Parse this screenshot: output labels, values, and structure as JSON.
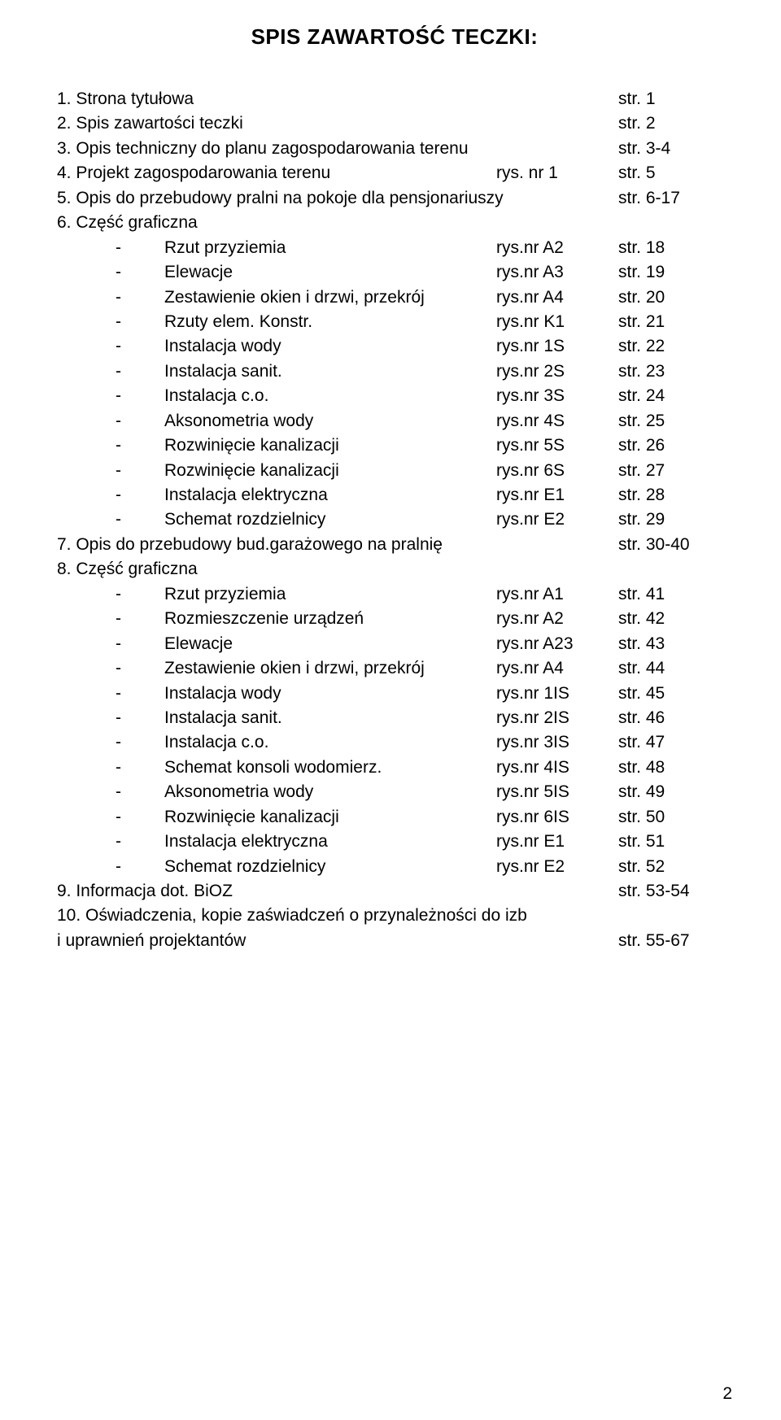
{
  "title": "SPIS ZAWARTOŚĆ TECZKI:",
  "page_number": "2",
  "text_color": "#000000",
  "background_color": "#ffffff",
  "title_fontsize": 26,
  "body_fontsize": 21,
  "col_left_width": 540,
  "col_mid_width": 150,
  "sub_col_left_width": 468,
  "top_items": [
    {
      "num": "1.",
      "label": "Strona tytułowa",
      "mid": "",
      "right": "str. 1"
    },
    {
      "num": "2.",
      "label": "Spis zawartości teczki",
      "mid": "",
      "right": "str. 2"
    },
    {
      "num": "3.",
      "label": "Opis techniczny do planu zagospodarowania terenu",
      "mid": "",
      "right": "str. 3-4"
    },
    {
      "num": "4.",
      "label": "Projekt zagospodarowania terenu",
      "mid": "rys. nr 1",
      "right": "str. 5"
    },
    {
      "num": "5.",
      "label": "Opis do przebudowy pralni na pokoje dla pensjonariuszy",
      "mid": "",
      "right": "str. 6-17"
    },
    {
      "num": "6.",
      "label": "Część graficzna",
      "mid": "",
      "right": ""
    }
  ],
  "section6": [
    {
      "label": "Rzut przyziemia",
      "mid": "rys.nr A2",
      "right": "str. 18"
    },
    {
      "label": "Elewacje",
      "mid": "rys.nr A3",
      "right": "str. 19"
    },
    {
      "label": "Zestawienie okien i drzwi, przekrój",
      "mid": "rys.nr A4",
      "right": "str. 20"
    },
    {
      "label": "Rzuty elem. Konstr.",
      "mid": "rys.nr K1",
      "right": "str. 21"
    },
    {
      "label": "Instalacja wody",
      "mid": "rys.nr 1S",
      "right": "str. 22"
    },
    {
      "label": "Instalacja sanit.",
      "mid": "rys.nr 2S",
      "right": "str. 23"
    },
    {
      "label": "Instalacja c.o.",
      "mid": "rys.nr 3S",
      "right": "str. 24"
    },
    {
      "label": "Aksonometria wody",
      "mid": "rys.nr 4S",
      "right": "str. 25"
    },
    {
      "label": "Rozwinięcie kanalizacji",
      "mid": "rys.nr 5S",
      "right": "str. 26"
    },
    {
      "label": "Rozwinięcie kanalizacji",
      "mid": "rys.nr 6S",
      "right": "str. 27"
    },
    {
      "label": "Instalacja elektryczna",
      "mid": "rys.nr E1",
      "right": "str. 28"
    },
    {
      "label": "Schemat rozdzielnicy",
      "mid": "rys.nr E2",
      "right": "str. 29"
    }
  ],
  "mid_items": [
    {
      "num": "7.",
      "label": "Opis do przebudowy bud.garażowego na pralnię",
      "mid": "",
      "right": "str. 30-40"
    },
    {
      "num": "8.",
      "label": "Część graficzna",
      "mid": "",
      "right": ""
    }
  ],
  "section8": [
    {
      "label": "Rzut przyziemia",
      "mid": "rys.nr A1",
      "right": "str. 41"
    },
    {
      "label": "Rozmieszczenie urządzeń",
      "mid": "rys.nr A2",
      "right": "str. 42"
    },
    {
      "label": "Elewacje",
      "mid": "rys.nr A23",
      "right": "str. 43"
    },
    {
      "label": "Zestawienie okien i drzwi, przekrój",
      "mid": "rys.nr A4",
      "right": "str. 44"
    },
    {
      "label": "Instalacja wody",
      "mid": "rys.nr 1IS",
      "right": "str. 45"
    },
    {
      "label": "Instalacja sanit.",
      "mid": "rys.nr 2IS",
      "right": "str. 46"
    },
    {
      "label": "Instalacja c.o.",
      "mid": "rys.nr 3IS",
      "right": "str. 47"
    },
    {
      "label": "Schemat konsoli wodomierz.",
      "mid": "rys.nr 4IS",
      "right": "str. 48"
    },
    {
      "label": "Aksonometria wody",
      "mid": "rys.nr 5IS",
      "right": "str. 49"
    },
    {
      "label": "Rozwinięcie kanalizacji",
      "mid": "rys.nr 6IS",
      "right": "str. 50"
    },
    {
      "label": "Instalacja elektryczna",
      "mid": "rys.nr E1",
      "right": "str. 51"
    },
    {
      "label": "Schemat rozdzielnicy",
      "mid": "rys.nr E2",
      "right": "str. 52"
    }
  ],
  "bottom_items": [
    {
      "num": "9.",
      "label": "Informacja dot. BiOZ",
      "mid": "",
      "right": "str. 53-54"
    }
  ],
  "item10_line1": "10. Oświadczenia, kopie zaświadczeń o przynależności do izb",
  "item10_line2_label": "i uprawnień projektantów",
  "item10_line2_right": "str. 55-67"
}
